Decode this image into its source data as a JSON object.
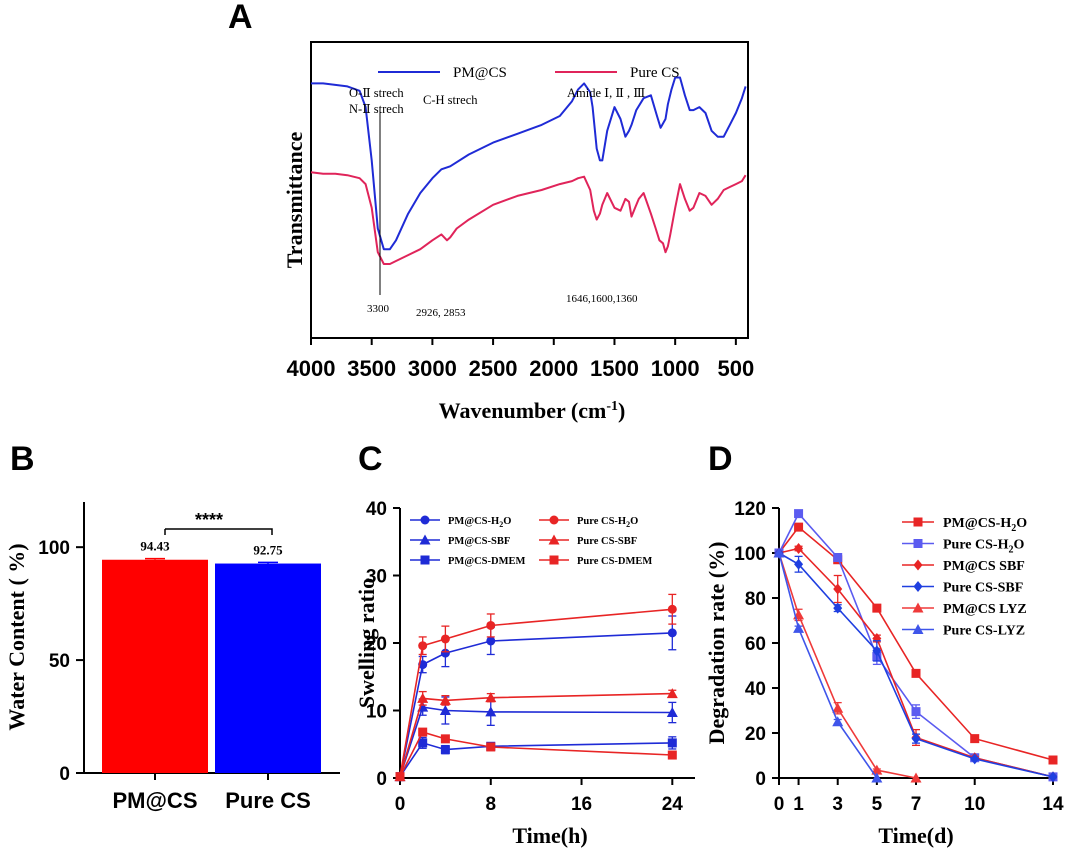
{
  "panel_letters": [
    "A",
    "B",
    "C",
    "D"
  ],
  "chart_data": [
    {
      "panel": "A",
      "type": "line",
      "title": "",
      "xlabel": "Wavenumber (cm-1)",
      "xlabel_main": "Wavenumber (cm",
      "xlabel_sup": "-1",
      "xlabel_close": ")",
      "ylabel": "Transmittance",
      "xlim": [
        4000,
        400
      ],
      "x_ticks": [
        "4000",
        "3500",
        "3000",
        "2500",
        "2000",
        "1500",
        "1000",
        "500"
      ],
      "x_tick_values": [
        4000,
        3500,
        3000,
        2500,
        2000,
        1500,
        1000,
        500
      ],
      "series": [
        {
          "name": "PM@CS",
          "color": "#1f2bd6",
          "x": [
            4000,
            3900,
            3800,
            3700,
            3600,
            3550,
            3500,
            3450,
            3400,
            3350,
            3300,
            3200,
            3100,
            3000,
            2926,
            2853,
            2700,
            2500,
            2300,
            2100,
            1950,
            1850,
            1800,
            1750,
            1700,
            1680,
            1646,
            1620,
            1600,
            1560,
            1500,
            1450,
            1410,
            1380,
            1360,
            1320,
            1260,
            1200,
            1150,
            1120,
            1080,
            1060,
            1030,
            1000,
            960,
            920,
            880,
            850,
            800,
            750,
            700,
            650,
            600,
            550,
            500,
            450,
            420
          ],
          "values": [
            0.86,
            0.86,
            0.855,
            0.85,
            0.835,
            0.78,
            0.6,
            0.37,
            0.3,
            0.3,
            0.33,
            0.42,
            0.49,
            0.54,
            0.57,
            0.58,
            0.62,
            0.66,
            0.69,
            0.72,
            0.75,
            0.8,
            0.84,
            0.86,
            0.83,
            0.78,
            0.64,
            0.6,
            0.6,
            0.7,
            0.78,
            0.74,
            0.68,
            0.7,
            0.72,
            0.77,
            0.81,
            0.82,
            0.75,
            0.71,
            0.74,
            0.79,
            0.84,
            0.88,
            0.88,
            0.82,
            0.77,
            0.77,
            0.78,
            0.76,
            0.7,
            0.68,
            0.68,
            0.72,
            0.76,
            0.81,
            0.85
          ]
        },
        {
          "name": "Pure CS",
          "color": "#e0245a",
          "x": [
            4000,
            3900,
            3800,
            3700,
            3600,
            3550,
            3500,
            3450,
            3400,
            3350,
            3300,
            3200,
            3100,
            3000,
            2926,
            2880,
            2853,
            2800,
            2700,
            2500,
            2300,
            2100,
            1950,
            1850,
            1800,
            1750,
            1700,
            1670,
            1646,
            1620,
            1600,
            1560,
            1500,
            1450,
            1410,
            1380,
            1360,
            1330,
            1300,
            1260,
            1200,
            1160,
            1130,
            1100,
            1080,
            1060,
            1040,
            1000,
            960,
            920,
            880,
            850,
            800,
            750,
            700,
            650,
            600,
            550,
            500,
            450,
            420
          ],
          "values": [
            0.56,
            0.555,
            0.555,
            0.55,
            0.54,
            0.52,
            0.44,
            0.29,
            0.25,
            0.25,
            0.26,
            0.28,
            0.3,
            0.33,
            0.35,
            0.33,
            0.34,
            0.37,
            0.4,
            0.45,
            0.48,
            0.5,
            0.52,
            0.53,
            0.54,
            0.545,
            0.5,
            0.43,
            0.4,
            0.42,
            0.45,
            0.49,
            0.44,
            0.43,
            0.47,
            0.46,
            0.41,
            0.44,
            0.47,
            0.49,
            0.42,
            0.37,
            0.33,
            0.32,
            0.29,
            0.31,
            0.35,
            0.44,
            0.52,
            0.47,
            0.43,
            0.44,
            0.49,
            0.48,
            0.45,
            0.47,
            0.5,
            0.51,
            0.52,
            0.53,
            0.55
          ]
        }
      ],
      "annotations": {
        "oh": "O-Ⅱ strech",
        "nh": "N-Ⅱ strech",
        "ch": "C-H strech",
        "amide": "Amide Ⅰ, Ⅱ , Ⅲ",
        "peak_oh": "3300",
        "peak_ch": "2926, 2853",
        "peak_amide": "1646,1600,1360"
      }
    },
    {
      "panel": "B",
      "type": "bar",
      "title": "",
      "xlabel": "",
      "ylabel": "Water Content ( %)",
      "ylim": [
        0,
        120
      ],
      "y_ticks": [
        "0",
        "50",
        "100"
      ],
      "y_tick_values": [
        0,
        50,
        100
      ],
      "categories": [
        "PM@CS",
        "Pure CS"
      ],
      "values": [
        94.43,
        92.75
      ],
      "errors": [
        0.5,
        0.5
      ],
      "value_labels": [
        "94.43",
        "92.75"
      ],
      "colors": [
        "#ff0000",
        "#0000ff"
      ],
      "significance": "****"
    },
    {
      "panel": "C",
      "type": "line",
      "title": "",
      "xlabel": "Time(h)",
      "ylabel": "Swelling ratio",
      "xlim": [
        0,
        26
      ],
      "ylim": [
        0,
        40
      ],
      "x_ticks": [
        "0",
        "8",
        "16",
        "24"
      ],
      "x_tick_values": [
        0,
        8,
        16,
        24
      ],
      "y_ticks": [
        "0",
        "10",
        "20",
        "30",
        "40"
      ],
      "y_tick_values": [
        0,
        10,
        20,
        30,
        40
      ],
      "x": [
        0,
        2,
        4,
        8,
        24
      ],
      "series": [
        {
          "name": "PM@CS-H2O",
          "label_main": "PM@CS-H",
          "label_sub": "2",
          "label_tail": "O",
          "color": "#1f2bd6",
          "marker": "circle",
          "values": [
            0.2,
            16.8,
            18.5,
            20.3,
            21.5
          ],
          "errors": [
            0.3,
            1.2,
            2.0,
            2.0,
            2.5
          ]
        },
        {
          "name": "PM@CS-SBF",
          "label_main": "PM@CS-SBF",
          "label_sub": "",
          "label_tail": "",
          "color": "#1f2bd6",
          "marker": "triangle",
          "values": [
            0.2,
            10.5,
            10.0,
            9.8,
            9.7
          ],
          "errors": [
            0.3,
            1.2,
            2.0,
            2.0,
            1.5
          ]
        },
        {
          "name": "PM@CS-DMEM",
          "label_main": "PM@CS-DMEM",
          "label_sub": "",
          "label_tail": "",
          "color": "#1f2bd6",
          "marker": "square",
          "values": [
            0.2,
            5.2,
            4.2,
            4.7,
            5.2
          ],
          "errors": [
            0.2,
            0.8,
            0.6,
            0.5,
            0.9
          ]
        },
        {
          "name": "Pure CS-H2O",
          "label_main": "Pure CS-H",
          "label_sub": "2",
          "label_tail": "O",
          "color": "#e82525",
          "marker": "circle",
          "values": [
            0.2,
            19.6,
            20.6,
            22.6,
            25.0
          ],
          "errors": [
            0.3,
            1.3,
            1.9,
            1.7,
            2.2
          ]
        },
        {
          "name": "Pure CS-SBF",
          "label_main": "Pure CS-SBF",
          "label_sub": "",
          "label_tail": "",
          "color": "#e82525",
          "marker": "triangle",
          "values": [
            0.2,
            11.8,
            11.5,
            11.9,
            12.5
          ],
          "errors": [
            0.3,
            1.0,
            0.7,
            0.6,
            0.5
          ]
        },
        {
          "name": "Pure CS-DMEM",
          "label_main": "Pure CS-DMEM",
          "label_sub": "",
          "label_tail": "",
          "color": "#e82525",
          "marker": "square",
          "values": [
            0.2,
            6.8,
            5.8,
            4.6,
            3.4
          ],
          "errors": [
            0.2,
            0.5,
            0.4,
            0.4,
            0.3
          ]
        }
      ]
    },
    {
      "panel": "D",
      "type": "line",
      "title": "",
      "xlabel": "Time(d)",
      "ylabel": "Degradation rate (%)",
      "xlim": [
        0,
        14
      ],
      "ylim": [
        0,
        120
      ],
      "x_ticks": [
        "0",
        "1",
        "3",
        "5",
        "7",
        "10",
        "14"
      ],
      "x_tick_values": [
        0,
        1,
        3,
        5,
        7,
        10,
        14
      ],
      "y_ticks": [
        "0",
        "20",
        "40",
        "60",
        "80",
        "100",
        "120"
      ],
      "y_tick_values": [
        0,
        20,
        40,
        60,
        80,
        100,
        120
      ],
      "series": [
        {
          "name": "PM@CS-H2O",
          "label_main": "PM@CS-H",
          "label_sub": "2",
          "label_tail": "O",
          "color": "#e82525",
          "marker": "square",
          "x": [
            0,
            1,
            3,
            5,
            7,
            10,
            14
          ],
          "values": [
            100,
            111.5,
            97,
            75.5,
            46.5,
            17.5,
            8
          ],
          "errors": [
            0,
            1.0,
            1.5,
            0.8,
            1.2,
            0.8,
            0.5
          ]
        },
        {
          "name": "Pure CS-H2O",
          "label_main": "Pure CS-H",
          "label_sub": "2",
          "label_tail": "O",
          "color": "#5b5bf0",
          "marker": "square",
          "x": [
            0,
            1,
            3,
            5,
            7,
            10,
            14
          ],
          "values": [
            100,
            117.5,
            98,
            54,
            29.5,
            9,
            0.5
          ],
          "errors": [
            0,
            1.5,
            1.5,
            3.5,
            3.0,
            0.8,
            0.3
          ]
        },
        {
          "name": "PM@CS SBF",
          "label_main": "PM@CS SBF",
          "label_sub": "",
          "label_tail": "",
          "color": "#e82525",
          "marker": "diamond",
          "x": [
            0,
            1,
            3,
            5,
            7,
            10,
            14
          ],
          "values": [
            100,
            102,
            84,
            62,
            18,
            9,
            0.5
          ],
          "errors": [
            0,
            1.0,
            6.0,
            1.5,
            3.5,
            0.5,
            0.3
          ]
        },
        {
          "name": "Pure CS-SBF",
          "label_main": "Pure CS-SBF",
          "label_sub": "",
          "label_tail": "",
          "color": "#1f3fe0",
          "marker": "diamond",
          "x": [
            0,
            1,
            3,
            5,
            7,
            10,
            14
          ],
          "values": [
            100,
            95,
            75.5,
            56.5,
            17.5,
            8.5,
            0.5
          ],
          "errors": [
            0,
            3.5,
            1.5,
            4.5,
            2.0,
            0.5,
            0.3
          ]
        },
        {
          "name": "PM@CS LYZ",
          "label_main": "PM@CS LYZ",
          "label_sub": "",
          "label_tail": "",
          "color": "#ef3a3a",
          "marker": "triangle",
          "x": [
            0,
            1,
            3,
            5,
            7
          ],
          "values": [
            100,
            72.5,
            31,
            3.5,
            0
          ],
          "errors": [
            0,
            2.5,
            2.5,
            0.5,
            0
          ]
        },
        {
          "name": "Pure CS-LYZ",
          "label_main": "Pure CS-LYZ",
          "label_sub": "",
          "label_tail": "",
          "color": "#3f55ea",
          "marker": "triangle",
          "x": [
            0,
            1,
            3,
            5
          ],
          "values": [
            100,
            66.5,
            25,
            0
          ],
          "errors": [
            0,
            1.0,
            1.0,
            0
          ]
        }
      ]
    }
  ]
}
